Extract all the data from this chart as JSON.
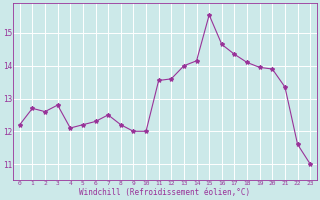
{
  "x": [
    0,
    1,
    2,
    3,
    4,
    5,
    6,
    7,
    8,
    9,
    10,
    11,
    12,
    13,
    14,
    15,
    16,
    17,
    18,
    19,
    20,
    21,
    22,
    23
  ],
  "y": [
    12.2,
    12.7,
    12.6,
    12.8,
    12.1,
    12.2,
    12.3,
    12.5,
    12.2,
    12.0,
    12.0,
    13.55,
    13.6,
    14.0,
    14.15,
    15.55,
    14.65,
    14.35,
    14.1,
    13.95,
    13.9,
    13.35,
    11.6,
    11.0
  ],
  "line_color": "#993399",
  "marker": "*",
  "marker_size": 3,
  "bg_color": "#cce9e9",
  "grid_color": "#ffffff",
  "xlabel": "Windchill (Refroidissement éolien,°C)",
  "xlabel_color": "#993399",
  "tick_color": "#993399",
  "label_color": "#993399",
  "ylim": [
    10.5,
    15.9
  ],
  "xlim": [
    -0.5,
    23.5
  ],
  "yticks": [
    11,
    12,
    13,
    14,
    15
  ],
  "xticks": [
    0,
    1,
    2,
    3,
    4,
    5,
    6,
    7,
    8,
    9,
    10,
    11,
    12,
    13,
    14,
    15,
    16,
    17,
    18,
    19,
    20,
    21,
    22,
    23
  ]
}
